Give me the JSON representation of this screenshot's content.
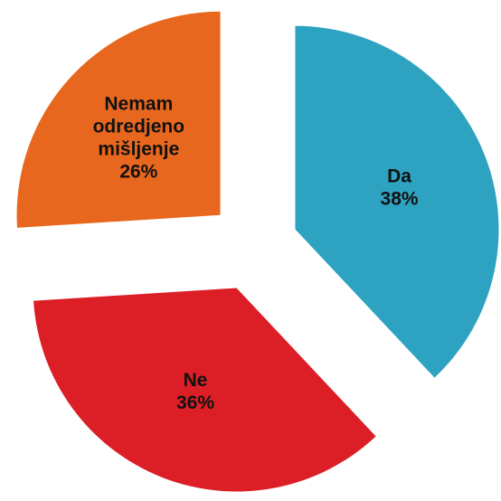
{
  "chart_data": {
    "type": "pie",
    "categories": [
      "Da",
      "Ne",
      "Nemam odredjeno mišljenje"
    ],
    "values": [
      38,
      36,
      26
    ],
    "value_labels": [
      "38%",
      "36%",
      "26%"
    ],
    "colors": [
      "#2ea3c1",
      "#dc1f26",
      "#e8671e"
    ]
  }
}
